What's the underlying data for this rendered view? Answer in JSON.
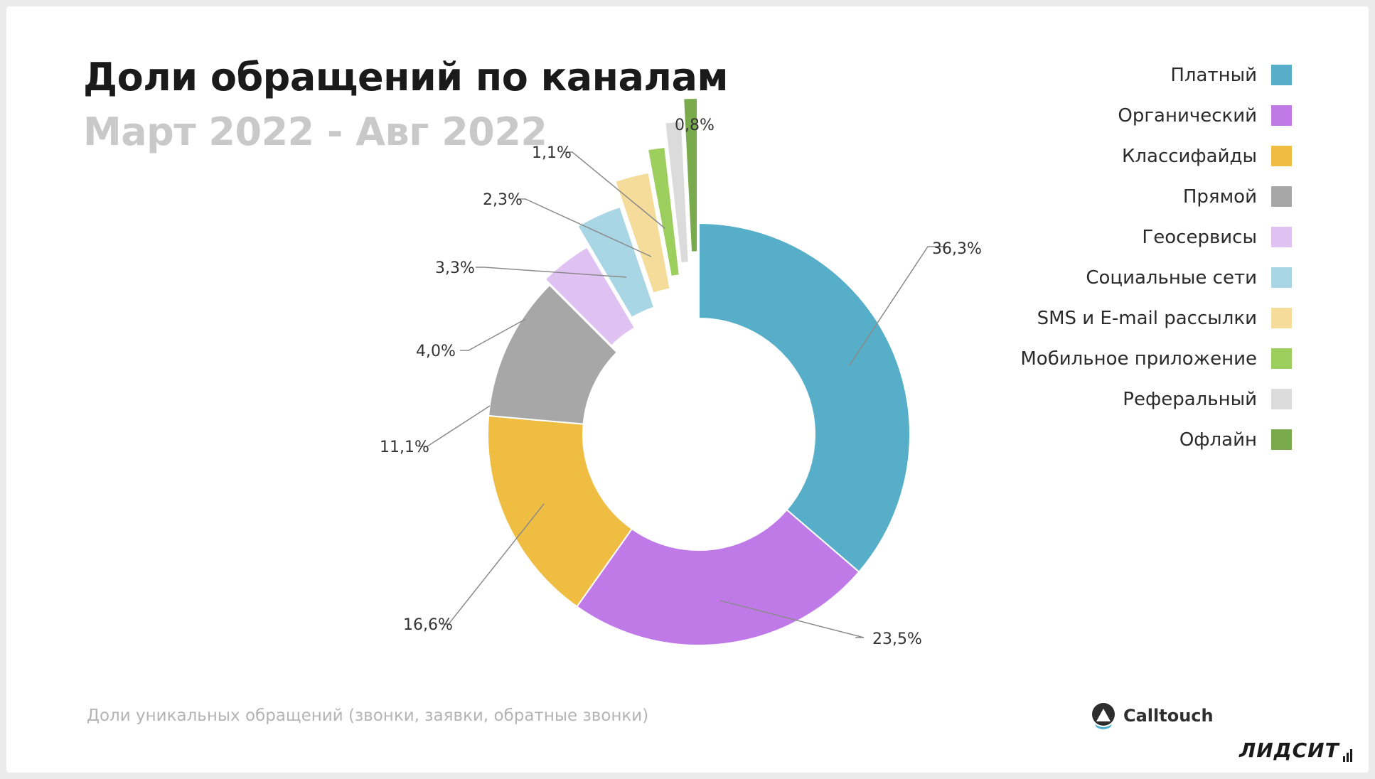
{
  "chart_data": {
    "type": "pie",
    "title": "Доли обращений по каналам",
    "subtitle": "Март 2022 - Авг 2022",
    "series": [
      {
        "name": "Платный",
        "value": 36.3,
        "label": "36,3%",
        "color": "#57aec8"
      },
      {
        "name": "Органический",
        "value": 23.5,
        "label": "23,5%",
        "color": "#bf7ae8"
      },
      {
        "name": "Классифайды",
        "value": 16.6,
        "label": "16,6%",
        "color": "#efbd41"
      },
      {
        "name": "Прямой",
        "value": 11.1,
        "label": "11,1%",
        "color": "#a7a7a7"
      },
      {
        "name": "Геосервисы",
        "value": 4.0,
        "label": "4,0%",
        "color": "#dfc1f2"
      },
      {
        "name": "Социальные сети",
        "value": 3.3,
        "label": "3,3%",
        "color": "#a8d6e4"
      },
      {
        "name": "SMS и E-mail рассылки",
        "value": 2.3,
        "label": "2,3%",
        "color": "#f5dc9a"
      },
      {
        "name": "Мобильное приложение",
        "value": 1.1,
        "label": "1,1%",
        "color": "#9ccf5e"
      },
      {
        "name": "Реферальный",
        "value": 1.0,
        "label": "",
        "color": "#dbdbdb"
      },
      {
        "name": "Офлайн",
        "value": 0.8,
        "label": "0,8%",
        "color": "#79ab4c"
      }
    ],
    "donut": true,
    "legend": "right"
  },
  "footnote": "Доли уникальных обращений (звонки, заявки, обратные звонки)",
  "brand": {
    "name": "Calltouch",
    "icon": "calltouch-logo-icon"
  },
  "brand2": {
    "name": "ЛИДСИТ"
  }
}
